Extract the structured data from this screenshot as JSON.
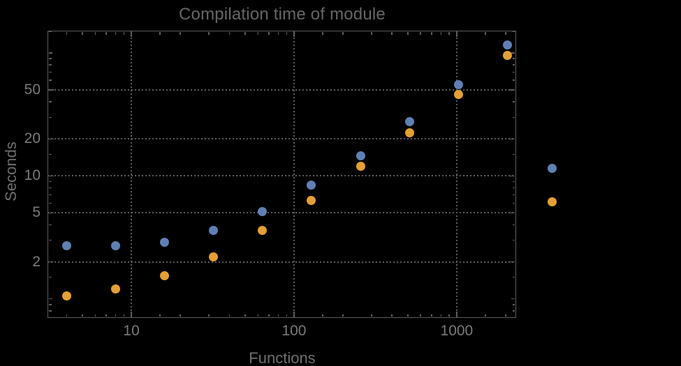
{
  "colors": {
    "background": "#000000",
    "frame": "#5f5f5f",
    "grid": "#5c5c5c",
    "tick_labels": "#7a7a7a",
    "axis_labels": "#6f6f6f",
    "title": "#666666",
    "series_blue": "#5e81b5",
    "series_orange": "#e5a02f"
  },
  "chart_data": {
    "type": "scatter",
    "title": "Compilation time of module",
    "xlabel": "Functions",
    "ylabel": "Seconds",
    "xscale": "log",
    "yscale": "log",
    "xlim": [
      3.05,
      2320
    ],
    "ylim": [
      0.7,
      152
    ],
    "grid": "dotted, at labeled ticks",
    "legend_position": "right of plot, markers only (no visible label text)",
    "x_tick_labels": [
      "10",
      "100",
      "1000"
    ],
    "y_tick_labels": [
      "2",
      "5",
      "10",
      "20",
      "50"
    ],
    "x": [
      4,
      8,
      16,
      32,
      64,
      128,
      256,
      512,
      1024,
      2048
    ],
    "series": [
      {
        "id": "series-1",
        "color": "#5e81b5",
        "values": [
          2.7,
          2.7,
          2.9,
          3.6,
          5.1,
          8.4,
          14.5,
          27.5,
          55,
          117
        ]
      },
      {
        "id": "series-2",
        "color": "#e5a02f",
        "values": [
          1.05,
          1.2,
          1.55,
          2.2,
          3.6,
          6.3,
          12,
          22.5,
          46,
          96
        ]
      }
    ],
    "legend": {
      "items": [
        {
          "color": "#5e81b5",
          "label": ""
        },
        {
          "color": "#e5a02f",
          "label": ""
        }
      ]
    }
  }
}
